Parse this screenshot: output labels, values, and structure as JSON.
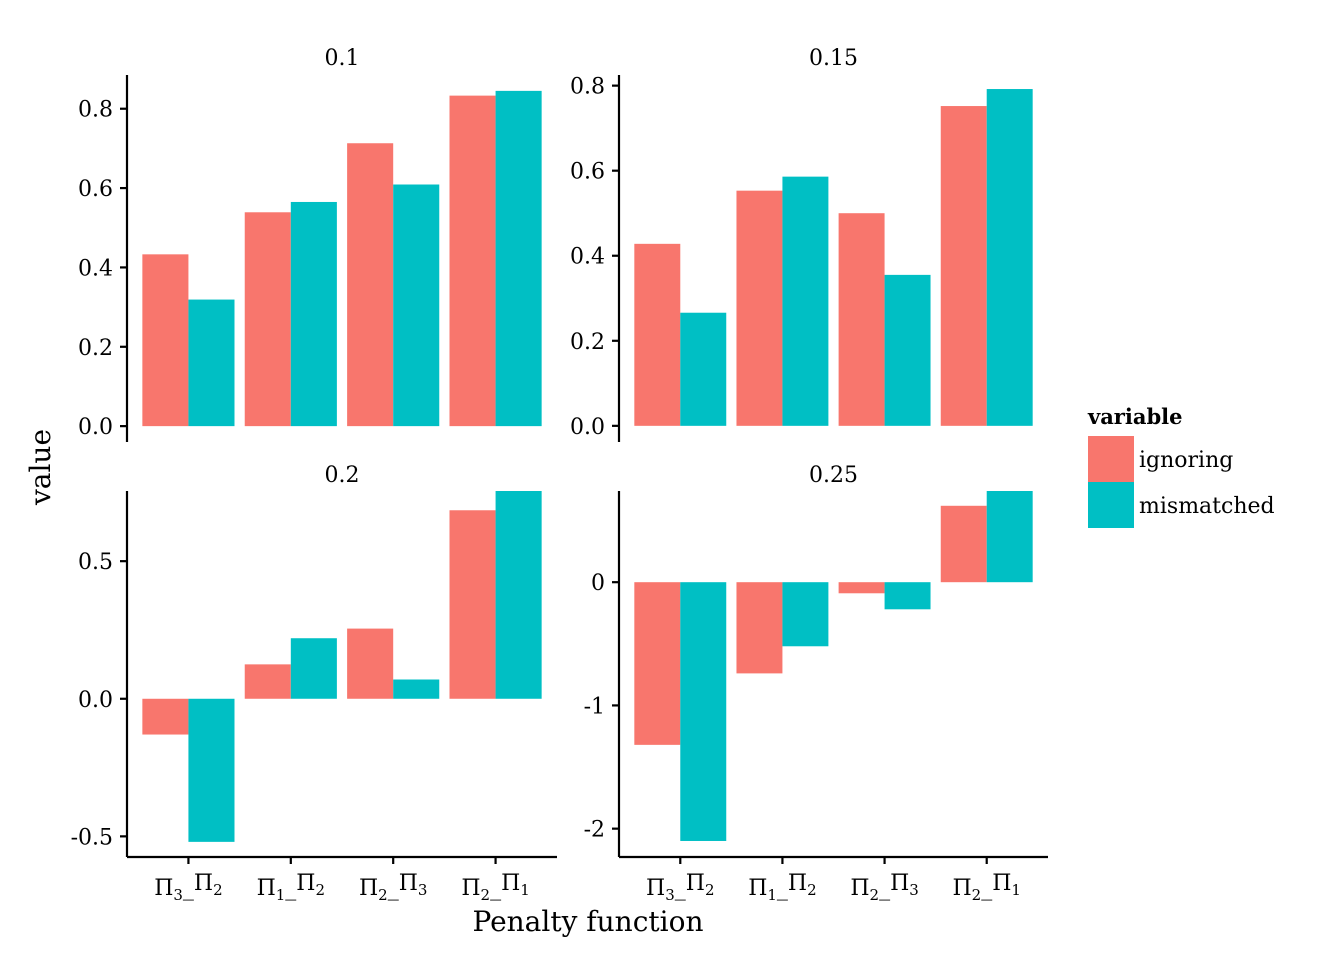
{
  "chart_data": {
    "type": "bar",
    "layout": "facet_wrap 2x2",
    "xlabel": "Penalty function",
    "ylabel": "value",
    "legend": {
      "title": "variable",
      "position": "right",
      "entries": [
        "ignoring",
        "mismatched"
      ]
    },
    "colors": {
      "ignoring": "#F8766D",
      "mismatched": "#00BFC4"
    },
    "categories": [
      {
        "id": "p3_p2",
        "base1": "Π",
        "sub1": "3",
        "sep": "_",
        "base2": "Π",
        "sub2": "2"
      },
      {
        "id": "p1_p2",
        "base1": "Π",
        "sub1": "1",
        "sep": "_",
        "base2": "Π",
        "sub2": "2"
      },
      {
        "id": "p2_p3",
        "base1": "Π",
        "sub1": "2",
        "sep": "_",
        "base2": "Π",
        "sub2": "3"
      },
      {
        "id": "p2_p1",
        "base1": "Π",
        "sub1": "2",
        "sep": "_",
        "base2": "Π",
        "sub2": "1"
      }
    ],
    "panels": [
      {
        "title": "0.1",
        "ylim": [
          -0.04,
          0.885
        ],
        "yticks": [
          0.0,
          0.2,
          0.4,
          0.6,
          0.8
        ],
        "ytick_labels": [
          "0.0",
          "0.2",
          "0.4",
          "0.6",
          "0.8"
        ],
        "series": [
          {
            "name": "ignoring",
            "values": [
              0.433,
              0.539,
              0.713,
              0.833
            ]
          },
          {
            "name": "mismatched",
            "values": [
              0.319,
              0.565,
              0.609,
              0.845
            ]
          }
        ]
      },
      {
        "title": "0.15",
        "ylim": [
          -0.038,
          0.825
        ],
        "yticks": [
          0.0,
          0.2,
          0.4,
          0.6,
          0.8
        ],
        "ytick_labels": [
          "0.0",
          "0.2",
          "0.4",
          "0.6",
          "0.8"
        ],
        "series": [
          {
            "name": "ignoring",
            "values": [
              0.428,
              0.553,
              0.5,
              0.752
            ]
          },
          {
            "name": "mismatched",
            "values": [
              0.266,
              0.586,
              0.355,
              0.792
            ]
          }
        ]
      },
      {
        "title": "0.2",
        "ylim": [
          -0.575,
          0.755
        ],
        "yticks": [
          -0.5,
          0.0,
          0.5
        ],
        "ytick_labels": [
          "-0.5",
          "0.0",
          "0.5"
        ],
        "series": [
          {
            "name": "ignoring",
            "values": [
              -0.13,
              0.125,
              0.255,
              0.685
            ]
          },
          {
            "name": "mismatched",
            "values": [
              -0.52,
              0.22,
              0.07,
              0.755
            ]
          }
        ]
      },
      {
        "title": "0.25",
        "ylim": [
          -2.23,
          0.74
        ],
        "yticks": [
          -2,
          -1,
          0
        ],
        "ytick_labels": [
          "-2",
          "-1",
          "0"
        ],
        "series": [
          {
            "name": "ignoring",
            "values": [
              -1.32,
              -0.74,
              -0.09,
              0.62
            ]
          },
          {
            "name": "mismatched",
            "values": [
              -2.1,
              -0.52,
              -0.22,
              0.74
            ]
          }
        ]
      }
    ]
  }
}
